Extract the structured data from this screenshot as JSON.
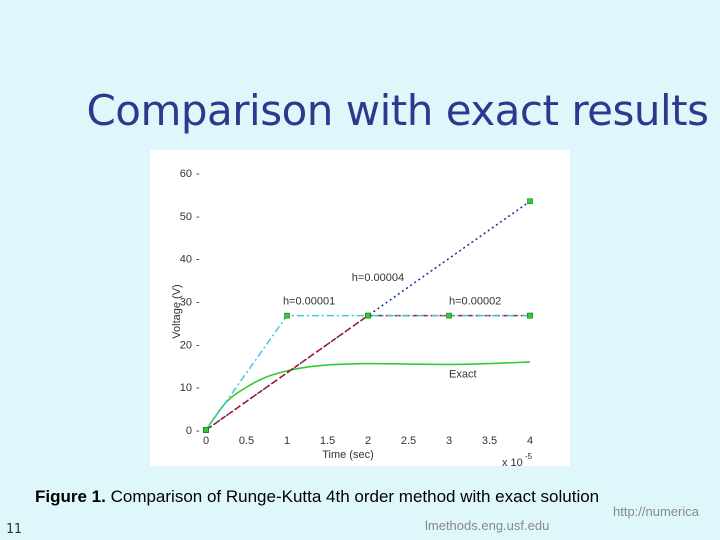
{
  "slide": {
    "title": "Comparison with exact results",
    "caption_label": "Figure 1.",
    "caption_text": " Comparison of Runge-Kutta 4th order method with exact solution",
    "number": "11",
    "url_line1": "http://numerica",
    "url_line2": "lmethods.eng.usf.edu"
  },
  "chart_data": {
    "type": "line",
    "title": "",
    "xlabel": "Time (sec)",
    "ylabel": "Voltage (V)",
    "x_exponent_label": "x 10",
    "x_exponent_power": "-5",
    "xlim": [
      0,
      4
    ],
    "ylim": [
      0,
      60
    ],
    "x_ticks": [
      0,
      0.5,
      1,
      1.5,
      2,
      2.5,
      3,
      3.5,
      4
    ],
    "y_ticks": [
      0,
      10,
      20,
      30,
      40,
      50,
      60
    ],
    "legend": "none",
    "series": [
      {
        "name": "h=0.00001",
        "style": "dash-dot",
        "color": "#40c8e0",
        "markers": true,
        "x": [
          0,
          1,
          2,
          3,
          4
        ],
        "y": [
          0,
          26.7,
          26.7,
          26.7,
          26.7
        ]
      },
      {
        "name": "h=0.00002",
        "style": "dashed",
        "color": "#b01020",
        "markers": true,
        "x": [
          0,
          2,
          4
        ],
        "y": [
          0,
          26.7,
          26.7
        ]
      },
      {
        "name": "h=0.00004",
        "style": "dotted",
        "color": "#1030a0",
        "markers": true,
        "x": [
          0,
          4
        ],
        "y": [
          0,
          53.4
        ]
      },
      {
        "name": "Exact",
        "style": "solid",
        "color": "#33cc33",
        "markers": false,
        "x": [
          0,
          0.25,
          0.5,
          0.75,
          1,
          1.25,
          1.5,
          1.75,
          2,
          2.5,
          3,
          3.5,
          4
        ],
        "y": [
          0,
          6.5,
          10.0,
          12.4,
          13.8,
          14.7,
          15.2,
          15.4,
          15.5,
          15.4,
          15.3,
          15.5,
          15.9
        ]
      }
    ],
    "annotations": [
      {
        "text": "h=0.00004",
        "x": 1.8,
        "y": 34.8
      },
      {
        "text": "h=0.00001",
        "x": 0.95,
        "y": 29.3
      },
      {
        "text": "h=0.00002",
        "x": 3.0,
        "y": 29.3
      },
      {
        "text": "Exact",
        "x": 3.0,
        "y": 12.2
      }
    ]
  }
}
